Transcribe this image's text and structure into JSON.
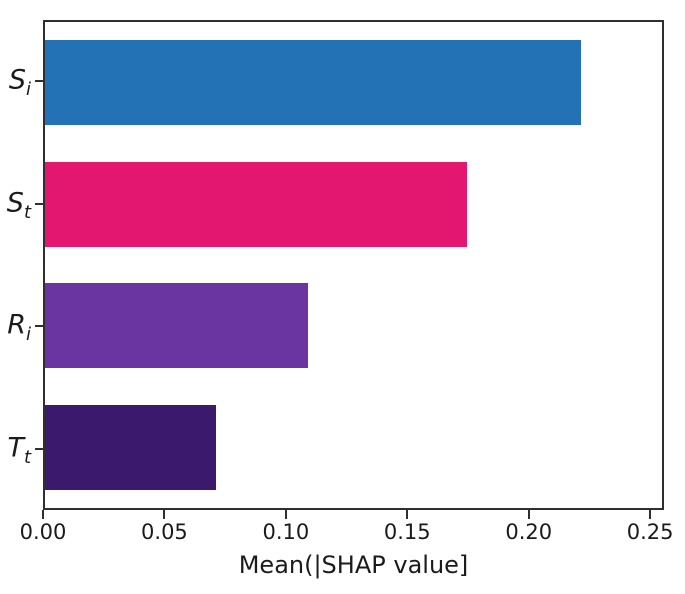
{
  "figure": {
    "background": "#ffffff",
    "text_color": "#1b1b1b",
    "spine_color": "#2f2f2f"
  },
  "chart_data": {
    "type": "bar",
    "orientation": "horizontal",
    "title": "",
    "xlabel": "Mean(|SHAP value]",
    "ylabel": "",
    "categories": [
      "S_i",
      "S_t",
      "R_i",
      "T_t"
    ],
    "category_labels": [
      {
        "base": "S",
        "sub": "i"
      },
      {
        "base": "S",
        "sub": "t"
      },
      {
        "base": "R",
        "sub": "i"
      },
      {
        "base": "T",
        "sub": "t"
      }
    ],
    "values": [
      0.222,
      0.175,
      0.109,
      0.071
    ],
    "bar_colors": [
      "#2272b5",
      "#e3176f",
      "#6a34a1",
      "#3b1a6e"
    ],
    "x_ticks": [
      {
        "value": 0.0,
        "label": "0.00"
      },
      {
        "value": 0.05,
        "label": "0.05"
      },
      {
        "value": 0.1,
        "label": "0.10"
      },
      {
        "value": 0.15,
        "label": "0.15"
      },
      {
        "value": 0.2,
        "label": "0.20"
      },
      {
        "value": 0.25,
        "label": "0.25"
      }
    ],
    "xlim": [
      0,
      0.2557
    ],
    "bar_height_fraction": 0.7,
    "grid": false,
    "legend": null
  }
}
